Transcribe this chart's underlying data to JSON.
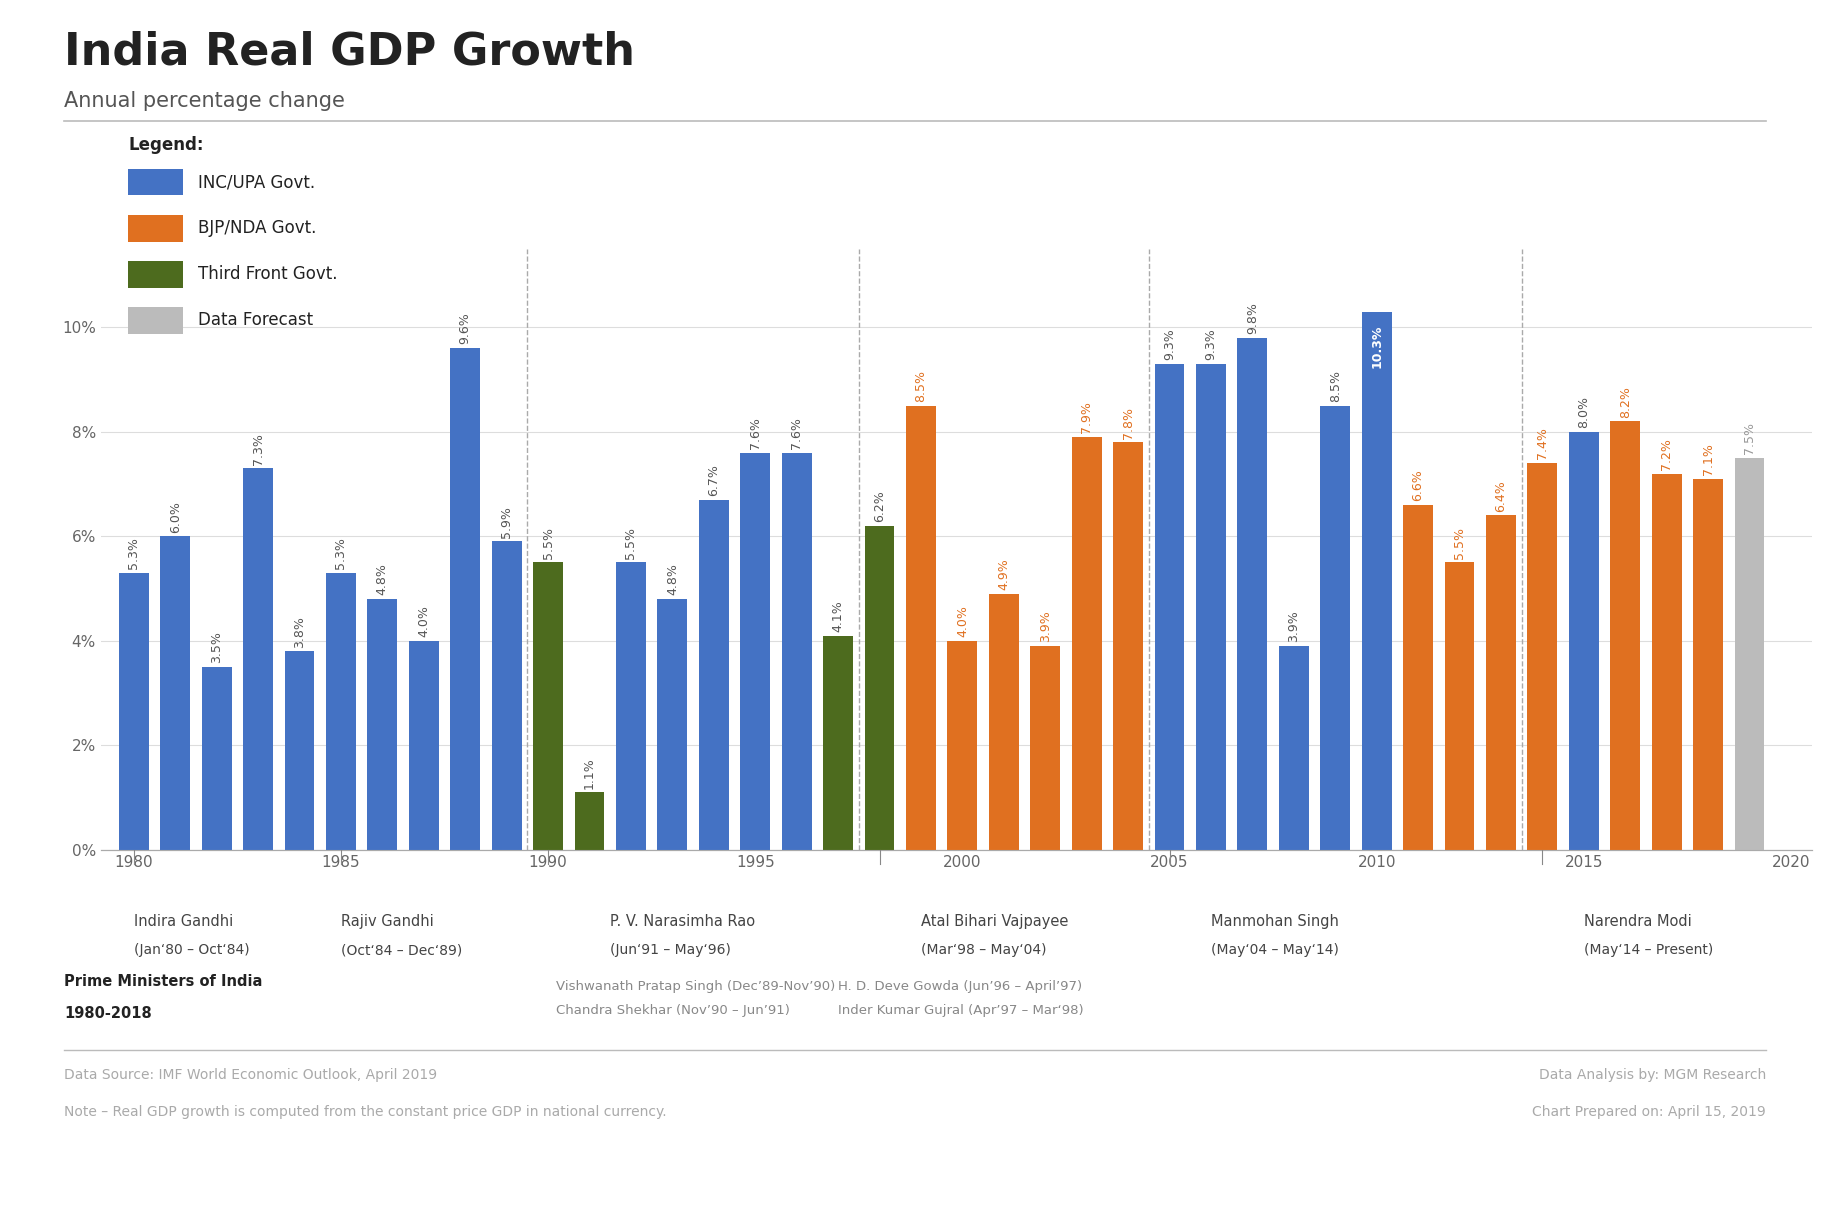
{
  "title": "India Real GDP Growth",
  "subtitle": "Annual percentage change",
  "years": [
    1980,
    1981,
    1982,
    1983,
    1984,
    1985,
    1986,
    1987,
    1988,
    1989,
    1990,
    1991,
    1992,
    1993,
    1994,
    1995,
    1996,
    1997,
    1998,
    1999,
    2000,
    2001,
    2002,
    2003,
    2004,
    2005,
    2006,
    2007,
    2008,
    2009,
    2010,
    2011,
    2012,
    2013,
    2014,
    2015,
    2016,
    2017,
    2018,
    2019
  ],
  "values": [
    5.3,
    6.0,
    3.5,
    7.3,
    3.8,
    5.3,
    4.8,
    4.0,
    9.6,
    5.9,
    5.5,
    1.1,
    5.5,
    4.8,
    6.7,
    7.6,
    7.6,
    4.1,
    6.2,
    8.5,
    4.0,
    4.9,
    3.9,
    7.9,
    7.8,
    9.3,
    9.3,
    9.8,
    3.9,
    8.5,
    10.3,
    6.6,
    5.5,
    6.4,
    7.4,
    8.0,
    8.2,
    7.2,
    7.1,
    7.5
  ],
  "colors": [
    "#4472C4",
    "#4472C4",
    "#4472C4",
    "#4472C4",
    "#4472C4",
    "#4472C4",
    "#4472C4",
    "#4472C4",
    "#4472C4",
    "#4472C4",
    "#4D6B1E",
    "#4D6B1E",
    "#4472C4",
    "#4472C4",
    "#4472C4",
    "#4472C4",
    "#4472C4",
    "#4D6B1E",
    "#4D6B1E",
    "#E07020",
    "#E07020",
    "#E07020",
    "#E07020",
    "#E07020",
    "#E07020",
    "#4472C4",
    "#4472C4",
    "#4472C4",
    "#4472C4",
    "#4472C4",
    "#4472C4",
    "#E07020",
    "#E07020",
    "#E07020",
    "#E07020",
    "#4472C4",
    "#E07020",
    "#E07020",
    "#E07020",
    "#BBBBBB"
  ],
  "value_labels": [
    "5.3%",
    "6.0%",
    "3.5%",
    "7.3%",
    "3.8%",
    "5.3%",
    "4.8%",
    "4.0%",
    "9.6%",
    "5.9%",
    "5.5%",
    "1.1%",
    "5.5%",
    "4.8%",
    "6.7%",
    "7.6%",
    "7.6%",
    "4.1%",
    "6.2%",
    "8.5%",
    "4.0%",
    "4.9%",
    "3.9%",
    "7.9%",
    "7.8%",
    "9.3%",
    "9.3%",
    "9.8%",
    "3.9%",
    "8.5%",
    "10.3%",
    "6.6%",
    "5.5%",
    "6.4%",
    "7.4%",
    "8.0%",
    "8.2%",
    "7.2%",
    "7.1%",
    "7.5%"
  ],
  "label_colors": [
    "#555555",
    "#555555",
    "#555555",
    "#555555",
    "#555555",
    "#555555",
    "#555555",
    "#555555",
    "#555555",
    "#555555",
    "#555555",
    "#555555",
    "#555555",
    "#555555",
    "#555555",
    "#555555",
    "#555555",
    "#555555",
    "#555555",
    "#E07020",
    "#E07020",
    "#E07020",
    "#E07020",
    "#E07020",
    "#E07020",
    "#555555",
    "#555555",
    "#555555",
    "#555555",
    "#555555",
    "#FFFFFF",
    "#E07020",
    "#E07020",
    "#E07020",
    "#E07020",
    "#555555",
    "#E07020",
    "#E07020",
    "#E07020",
    "#999999"
  ],
  "ylim": [
    0,
    11.5
  ],
  "yticks": [
    0,
    2,
    4,
    6,
    8,
    10
  ],
  "ytick_labels": [
    "0%",
    "2%",
    "4%",
    "6%",
    "8%",
    "10%"
  ],
  "xtick_years": [
    1980,
    1985,
    1990,
    1995,
    2000,
    2005,
    2010,
    2015,
    2020
  ],
  "blue_color": "#4472C4",
  "orange_color": "#E07020",
  "green_color": "#4D6B1E",
  "gray_color": "#BBBBBB",
  "bg_color": "#FFFFFF",
  "xlim_left": 1979.2,
  "xlim_right": 2020.5,
  "bar_width": 0.72,
  "dividers": [
    1989.5,
    1997.5,
    2004.5,
    2013.5
  ],
  "footer_left1": "Data Source: IMF World Economic Outlook, April 2019",
  "footer_left2": "Note – Real GDP growth is computed from the constant price GDP in national currency.",
  "footer_right1": "Data Analysis by: MGM Research",
  "footer_right2": "Chart Prepared on: April 15, 2019"
}
